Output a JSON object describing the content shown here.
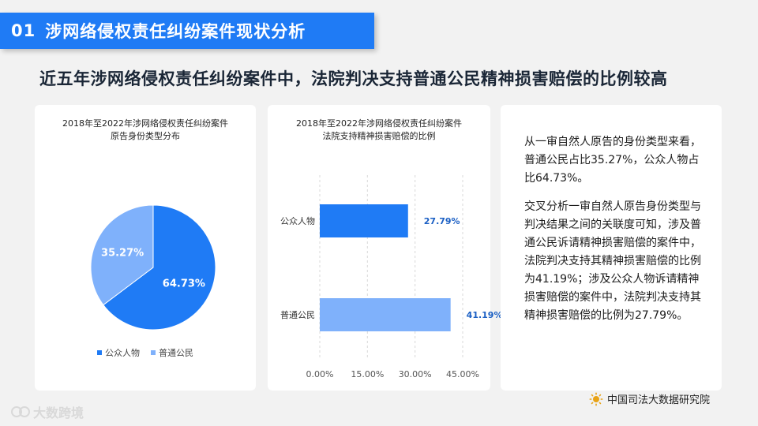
{
  "banner": {
    "number": "01",
    "title": "涉网络侵权责任纠纷案件现状分析"
  },
  "headline": "近五年涉网络侵权责任纠纷案件中，法院判决支持普通公民精神损害赔偿的比例较高",
  "colors": {
    "accent": "#1f7bf5",
    "light_blue": "#7fb1fb",
    "bar_dark": "#1f7bf5"
  },
  "chart_data": [
    {
      "type": "pie",
      "title_line1": "2018年至2022年涉网络侵权责任纠纷案件",
      "title_line2": "原告身份类型分布",
      "slices": [
        {
          "name": "公众人物",
          "value": 64.73,
          "label": "64.73%",
          "color": "#1f7bf5"
        },
        {
          "name": "普通公民",
          "value": 35.27,
          "label": "35.27%",
          "color": "#7fb1fb"
        }
      ],
      "legend": [
        "公众人物",
        "普通公民"
      ],
      "legend_position": "bottom"
    },
    {
      "type": "bar",
      "orientation": "horizontal",
      "title_line1": "2018年至2022年涉网络侵权责任纠纷案件",
      "title_line2": "法院支持精神损害赔偿的比例",
      "categories": [
        "公众人物",
        "普通公民"
      ],
      "values": [
        27.79,
        41.19
      ],
      "value_labels": [
        "27.79%",
        "41.19%"
      ],
      "colors": [
        "#1f7bf5",
        "#7fb1fb"
      ],
      "xlim": [
        0,
        45
      ],
      "xticks": [
        0,
        15,
        30,
        45
      ],
      "xtick_labels": [
        "0.00%",
        "15.00%",
        "30.00%",
        "45.00%"
      ],
      "grid": true
    }
  ],
  "text_panel": {
    "p1": "从一审自然人原告的身份类型来看，普通公民占比35.27%，公众人物占比64.73%。",
    "p2": "交叉分析一审自然人原告身份类型与判决结果之间的关联度可知，涉及普通公民诉请精神损害赔偿的案件中，法院判决支持其精神损害赔偿的比例为41.19%；涉及公众人物诉请精神损害赔偿的案件中，法院判决支持其精神损害赔偿的比例为27.79%。"
  },
  "source": {
    "icon": "sun-logo-icon",
    "text": "中国司法大数据研究院"
  },
  "watermark": {
    "icon": "watermark-logo-icon",
    "text": "大数跨境"
  }
}
